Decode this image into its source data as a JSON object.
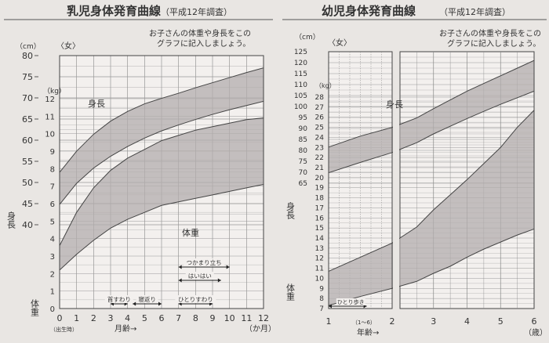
{
  "chart_data": [
    {
      "type": "area",
      "title": "乳児身体発育曲線",
      "subtitle": "（平成12年調査）",
      "note_lines": [
        "お子さんの体重や身長をこの",
        "グラフに記入しましょう。"
      ],
      "sex_label": "〈女〉",
      "xlabel": "月齢→",
      "x_unit": "（か月）",
      "x_ticks": [
        "0",
        "1",
        "2",
        "3",
        "4",
        "5",
        "6",
        "7",
        "8",
        "9",
        "10",
        "11",
        "12"
      ],
      "x_first_sub": "（出生時）",
      "xlim": [
        0,
        12
      ],
      "height_axis": {
        "unit": "（cm）",
        "label": "身長",
        "range": [
          40,
          80
        ],
        "ticks": [
          "40",
          "45",
          "50",
          "55",
          "60",
          "65",
          "70",
          "75",
          "80"
        ]
      },
      "weight_axis": {
        "unit": "（kg）",
        "label": "体重",
        "range": [
          0,
          12
        ],
        "ticks": [
          "0",
          "1",
          "2",
          "3",
          "4",
          "5",
          "6",
          "7",
          "8",
          "9",
          "10",
          "11",
          "12"
        ]
      },
      "series": [
        {
          "name": "身長",
          "axis": "height",
          "x": [
            0,
            1,
            2,
            3,
            4,
            5,
            6,
            7,
            8,
            9,
            10,
            11,
            12
          ],
          "lower": [
            44.8,
            49.8,
            53.4,
            56.2,
            58.5,
            60.5,
            62.2,
            63.6,
            64.9,
            66.1,
            67.2,
            68.2,
            69.2
          ],
          "upper": [
            52.4,
            57.4,
            61.4,
            64.5,
            66.8,
            68.6,
            69.9,
            71.1,
            72.4,
            73.6,
            74.8,
            76.0,
            77.1
          ]
        },
        {
          "name": "体重",
          "axis": "weight",
          "x": [
            0,
            1,
            2,
            3,
            4,
            5,
            6,
            7,
            8,
            9,
            10,
            11,
            12
          ],
          "lower": [
            2.2,
            3.1,
            3.9,
            4.6,
            5.1,
            5.5,
            5.9,
            6.1,
            6.3,
            6.5,
            6.7,
            6.9,
            7.1
          ],
          "upper": [
            3.6,
            5.5,
            6.9,
            7.9,
            8.6,
            9.1,
            9.6,
            9.9,
            10.2,
            10.4,
            10.6,
            10.8,
            10.9
          ]
        }
      ],
      "milestones": [
        {
          "label": "つかまり立ち",
          "from": 7,
          "to": 10
        },
        {
          "label": "はいはい",
          "from": 7,
          "to": 9.5
        },
        {
          "label": "首すわり",
          "from": 3,
          "to": 4
        },
        {
          "label": "寝返り",
          "from": 4.3,
          "to": 6
        },
        {
          "label": "ひとりすわり",
          "from": 7,
          "to": 9
        }
      ]
    },
    {
      "type": "area",
      "title": "幼児身体発育曲線",
      "subtitle": "（平成12年調査）",
      "note_lines": [
        "お子さんの体重や身長をこの",
        "グラフに記入しましょう。"
      ],
      "sex_label": "〈女〉",
      "xlabel": "年齢→",
      "x_unit": "（歳）",
      "x_ticks": [
        "1",
        "2",
        "3",
        "4",
        "5",
        "6"
      ],
      "x_sub_label": "（1～6）",
      "xlim": [
        1,
        6
      ],
      "height_axis": {
        "unit": "（cm）",
        "label": "身長",
        "range": [
          65,
          125
        ],
        "ticks": [
          "65",
          "70",
          "75",
          "80",
          "85",
          "90",
          "95",
          "100",
          "105",
          "110",
          "115",
          "120",
          "125"
        ]
      },
      "weight_axis": {
        "unit": "（kg）",
        "label": "体重",
        "range": [
          7,
          28
        ],
        "ticks": [
          "7",
          "8",
          "9",
          "10",
          "11",
          "12",
          "13",
          "14",
          "15",
          "16",
          "17",
          "18",
          "19",
          "20",
          "21",
          "22",
          "23",
          "24",
          "25",
          "26",
          "27",
          "28"
        ]
      },
      "series": [
        {
          "name": "身長",
          "axis": "height",
          "x": [
            1,
            1.5,
            2,
            2.5,
            3,
            3.5,
            4,
            4.5,
            5,
            5.5,
            6
          ],
          "lower": [
            69.8,
            74.5,
            79.0,
            83.5,
            87.5,
            91.0,
            94.5,
            97.8,
            101.0,
            104.0,
            107.0
          ],
          "upper": [
            81.5,
            86.5,
            90.5,
            94.8,
            99.0,
            103.0,
            107.0,
            110.5,
            114.0,
            117.5,
            121.0
          ]
        },
        {
          "name": "体重",
          "axis": "weight",
          "x": [
            1,
            1.5,
            2,
            2.5,
            3,
            3.5,
            4,
            4.5,
            5,
            5.5,
            6
          ],
          "lower": [
            7.3,
            8.2,
            9.0,
            9.7,
            10.5,
            11.2,
            12.1,
            12.9,
            13.6,
            14.3,
            14.9
          ],
          "upper": [
            10.7,
            12.1,
            13.5,
            15.1,
            16.8,
            18.3,
            19.8,
            21.4,
            23.0,
            25.0,
            26.7
          ]
        }
      ],
      "milestones": [
        {
          "label": "ひとり歩き",
          "from": 1,
          "to": 1.6
        }
      ]
    }
  ]
}
